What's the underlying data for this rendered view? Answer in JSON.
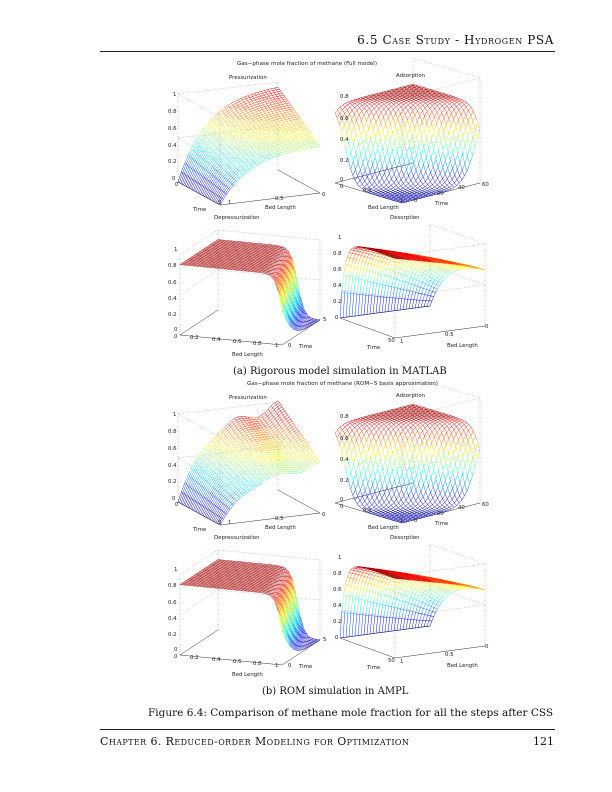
{
  "header": {
    "running_title": "6.5 Case Study - Hydrogen PSA"
  },
  "figure_a": {
    "title": "Gas−phase mole fraction of methane (Full model)",
    "caption": "(a)  Rigorous model simulation in MATLAB"
  },
  "figure_b": {
    "title": "Gas−phase mole fraction of methane (ROM−5 basis approximation)",
    "caption": "(b)  ROM simulation in AMPL"
  },
  "figure_caption": "Figure 6.4: Comparison of methane mole fraction for all the steps after CSS",
  "footer": {
    "chapter": "Chapter 6. Reduced-order Modeling for Optimization",
    "page": "121"
  },
  "panels": [
    {
      "title": "Pressurization",
      "z_ticks": [
        "1",
        "0.8",
        "0.6",
        "0.4",
        "0.2",
        "0"
      ],
      "ticks": [
        "0",
        "5",
        "1",
        "0.5",
        "0"
      ],
      "labels": [
        "Time",
        "Bed Length"
      ]
    },
    {
      "title": "Adsorption",
      "z_ticks": [
        "0.8",
        "0.6",
        "0.4",
        "0.2",
        "0"
      ],
      "ticks": [
        "0",
        "0.5",
        "1",
        "0",
        "20",
        "40",
        "60"
      ],
      "labels": [
        "Bed Length",
        "Time"
      ]
    },
    {
      "title": "Depressurization",
      "z_ticks": [
        "1",
        "0.8",
        "0.6",
        "0.4",
        "0.2",
        "0"
      ],
      "ticks": [
        "0",
        "0.2",
        "0.4",
        "0.6",
        "0.8",
        "1",
        "0",
        "5"
      ],
      "labels": [
        "Time",
        "Bed Length"
      ]
    },
    {
      "title": "Desorption",
      "z_ticks": [
        "1",
        "0.8",
        "0.6",
        "0.4",
        "0.2",
        "0"
      ],
      "ticks": [
        "50",
        "1",
        "0.5",
        "0"
      ],
      "labels": [
        "Time",
        "Bed Length"
      ]
    },
    {
      "title": "Pressurization",
      "z_ticks": [
        "1",
        "0.8",
        "0.6",
        "0.4",
        "0.2",
        "0"
      ],
      "ticks": [
        "0",
        "5",
        "1",
        "0.5",
        "0"
      ],
      "labels": [
        "Time",
        "Bed Length"
      ]
    },
    {
      "title": "Adsorption",
      "z_ticks": [
        "0.8",
        "0.6",
        "0.4",
        "0.2",
        "0"
      ],
      "ticks": [
        "0",
        "0.5",
        "1",
        "0",
        "20",
        "40",
        "60"
      ],
      "labels": [
        "Bed Length",
        "Time"
      ]
    },
    {
      "title": "Depressurization",
      "z_ticks": [
        "1",
        "0.8",
        "0.6",
        "0.4",
        "0.2",
        "0"
      ],
      "ticks": [
        "0",
        "0.2",
        "0.4",
        "0.6",
        "0.8",
        "1",
        "0",
        "5"
      ],
      "labels": [
        "Time",
        "Bed Length"
      ]
    },
    {
      "title": "Desorption",
      "z_ticks": [
        "1",
        "0.8",
        "0.6",
        "0.4",
        "0.2",
        "0"
      ],
      "ticks": [
        "50",
        "1",
        "0.5",
        "0"
      ],
      "labels": [
        "Time",
        "Bed Length"
      ]
    }
  ]
}
